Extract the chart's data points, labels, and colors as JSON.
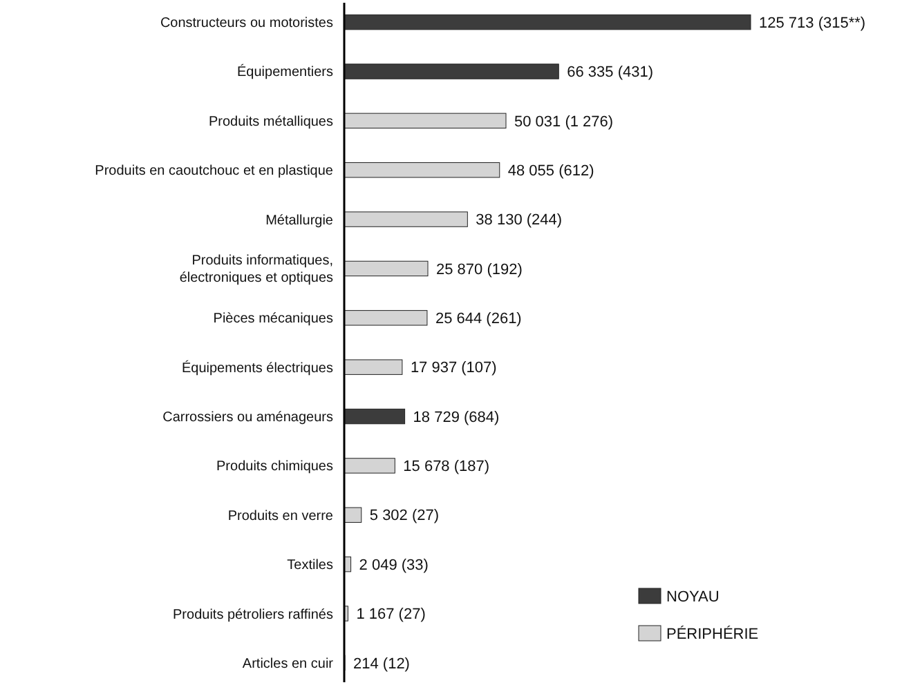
{
  "chart_data": {
    "type": "bar",
    "orientation": "horizontal",
    "stacked": true,
    "legend": "bottom right",
    "categories": [
      "Constructeurs ou motoristes",
      "Équipementiers",
      "Produits métalliques",
      "Produits en caoutchouc et en plastique",
      "Métallurgie",
      "Produits informatiques,\nélectroniques et optiques",
      "Pièces mécaniques",
      "Équipements électriques",
      "Carrossiers ou aménageurs",
      "Produits chimiques",
      "Produits en verre",
      "Textiles",
      "Produits pétroliers raffinés",
      "Articles en cuir"
    ],
    "series": [
      {
        "name": "NOYAU",
        "color": "#3c3c3c",
        "values": [
          125713,
          66335,
          null,
          null,
          null,
          null,
          null,
          null,
          18729,
          null,
          null,
          null,
          null,
          null
        ],
        "value_labels": [
          "125 713 (315**)",
          "66 335 (431)",
          null,
          null,
          null,
          null,
          null,
          null,
          "18 729 (684)",
          null,
          null,
          null,
          null,
          null
        ]
      },
      {
        "name": "PÉRIPHÉRIE",
        "color": "#d4d4d4",
        "values": [
          null,
          null,
          50031,
          48055,
          38130,
          25870,
          25644,
          17937,
          null,
          15678,
          5302,
          2049,
          1167,
          214
        ],
        "value_labels": [
          null,
          null,
          "50 031 (1 276)",
          "48 055 (612)",
          "38 130 (244)",
          "25 870 (192)",
          "25 644 (261)",
          "17 937 (107)",
          null,
          "15 678 (187)",
          "5 302 (27)",
          "2 049 (33)",
          "1 167 (27)",
          "214 (12)"
        ]
      }
    ]
  }
}
